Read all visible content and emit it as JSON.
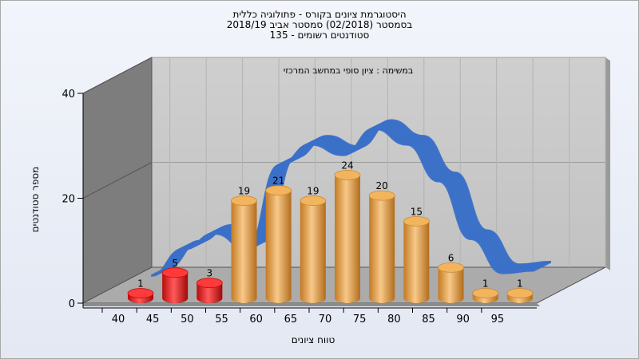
{
  "chart_data": {
    "type": "bar",
    "title_lines": [
      "היסטוגרמת ציונים בקורס - פתולוגיה כללית",
      "בסמסטר  (02/2018)  סמסטר אביב 2018/19",
      "סטודנטים רשומים - 135"
    ],
    "annotation": "במשימה : ציון סופי במחשב המרכזי",
    "xlabel": "טווח ציונים",
    "ylabel": "מספר סטודנטים",
    "categories": [
      "40",
      "45",
      "50",
      "55",
      "60",
      "65",
      "70",
      "75",
      "80",
      "85",
      "90",
      "95"
    ],
    "values": [
      1,
      5,
      3,
      19,
      21,
      19,
      24,
      20,
      15,
      6,
      1,
      1
    ],
    "yticks": [
      0,
      20,
      40
    ],
    "ylim": [
      0,
      40
    ],
    "fail_threshold": 55,
    "distribution_curve": [
      0,
      5,
      8,
      5,
      21,
      25,
      23,
      28,
      25,
      18,
      7,
      0.5,
      1
    ],
    "grid": true,
    "colors": {
      "fail_bar": "#e01515",
      "pass_bar": "#e8a74c",
      "curve": "#3a70c8",
      "wall": "#c8c8c8",
      "side_wall": "#7f7f7f",
      "floor": "#a9a9a9"
    }
  }
}
